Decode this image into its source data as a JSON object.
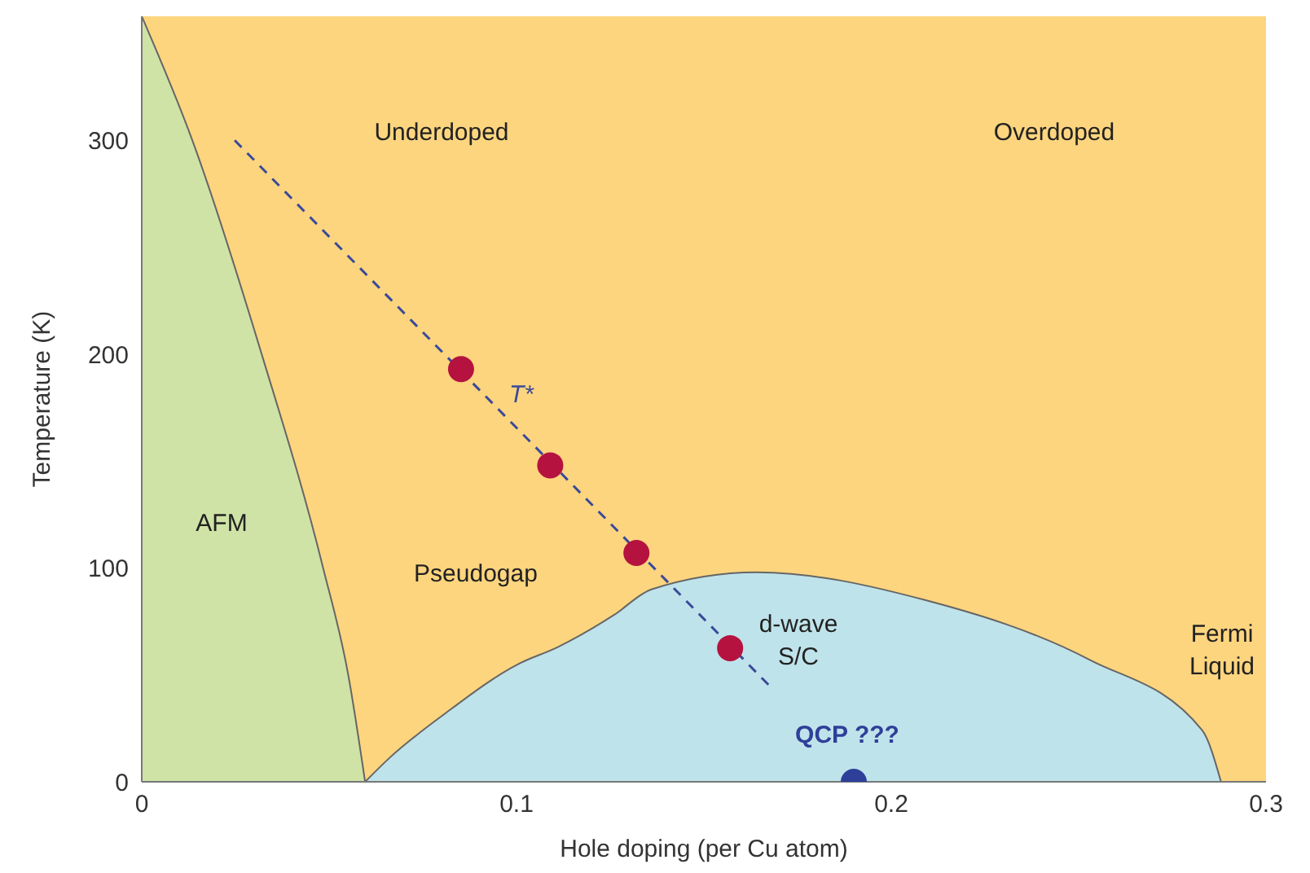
{
  "chart_data": {
    "type": "line",
    "xlabel": "Hole doping (per Cu atom)",
    "ylabel": "Temperature (K)",
    "xlim": [
      0,
      0.3
    ],
    "ylim": [
      0,
      358
    ],
    "xticks": [
      0,
      {
        "value": 0.1,
        "label": "0.1"
      },
      {
        "value": 0.2,
        "label": "0.2"
      },
      {
        "value": 0.3,
        "label": "0.3"
      }
    ],
    "yticks": [
      0,
      100,
      200,
      300
    ],
    "grid": false,
    "legend": false,
    "series": [
      {
        "type": "area",
        "color": "#cfe3a6",
        "x": [
          0,
          0.0135,
          0.032,
          0.0484,
          0.0551,
          0.0596
        ],
        "values": [
          358,
          300,
          200,
          100,
          50,
          0
        ]
      },
      {
        "type": "area",
        "color": "#bfe3ea",
        "x": [
          0.0596,
          0.066,
          0.081,
          0.1004,
          0.111,
          0.126,
          0.136,
          0.164,
          0.209,
          0.253,
          0.283,
          0.288
        ],
        "values": [
          0,
          11,
          32,
          55,
          63,
          78,
          90,
          98,
          85,
          57,
          24,
          0
        ]
      },
      {
        "color": "#3a4a9a",
        "line_style": "dashed",
        "marker": "none",
        "x": [
          0.0248,
          0.168
        ],
        "values": [
          300,
          44
        ]
      },
      {
        "type": "scatter",
        "color": "#b5123f",
        "marker": "circle",
        "x": [
          0.0852,
          0.109,
          0.132,
          0.157
        ],
        "values": [
          193,
          148,
          107,
          62.5
        ]
      },
      {
        "type": "scatter",
        "color": "#2e3f9a",
        "marker": "circle",
        "x": [
          0.19
        ],
        "values": [
          0
        ]
      }
    ],
    "annotations": [
      "Underdoped",
      "Overdoped",
      "AFM",
      "Pseudogap",
      "T*",
      "d-wave\nS/C",
      "Fermi\nLiquid",
      "QCP ???"
    ]
  }
}
